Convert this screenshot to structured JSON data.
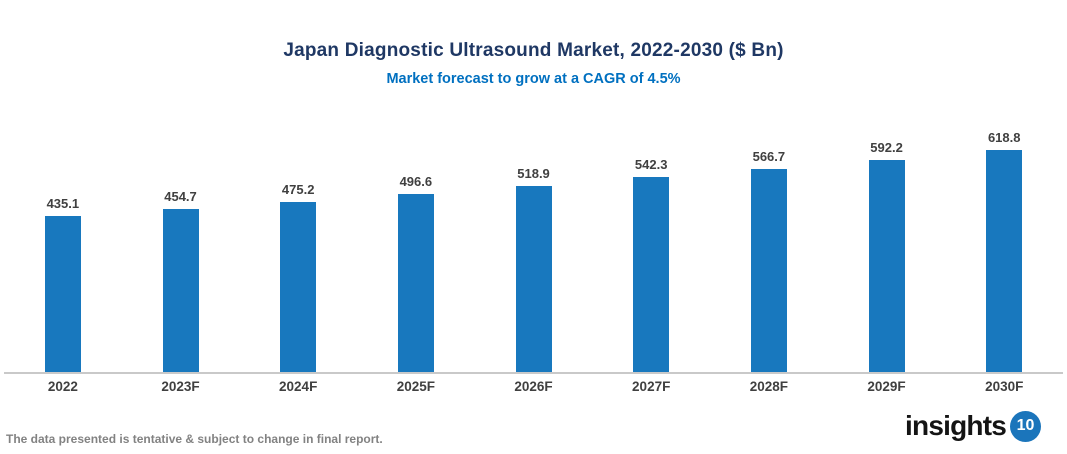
{
  "header": {
    "title": "Japan Diagnostic Ultrasound Market, 2022-2030 ($ Bn)",
    "subtitle": "Market forecast to grow at a CAGR of 4.5%"
  },
  "chart_data": {
    "type": "bar",
    "categories": [
      "2022",
      "2023F",
      "2024F",
      "2025F",
      "2026F",
      "2027F",
      "2028F",
      "2029F",
      "2030F"
    ],
    "values": [
      435.1,
      454.7,
      475.2,
      496.6,
      518.9,
      542.3,
      566.7,
      592.2,
      618.8
    ],
    "title": "Japan Diagnostic Ultrasound Market, 2022-2030 ($ Bn)",
    "subtitle": "Market forecast to grow at a CAGR of 4.5%",
    "xlabel": "",
    "ylabel": "",
    "ylim": [
      0,
      650
    ],
    "grid": false,
    "legend": false,
    "data_labels": true,
    "bar_color": "#1878BE",
    "value_label_color": "#404040",
    "axis_line_color": "#C9C9C9"
  },
  "footer": {
    "note": "The data presented is tentative & subject to change in final report.",
    "logo_text": "insights",
    "logo_badge": "10",
    "logo_badge_color": "#1B75BB"
  },
  "colors": {
    "title": "#1F3864",
    "subtitle": "#0070C0",
    "background": "#FFFFFF"
  }
}
